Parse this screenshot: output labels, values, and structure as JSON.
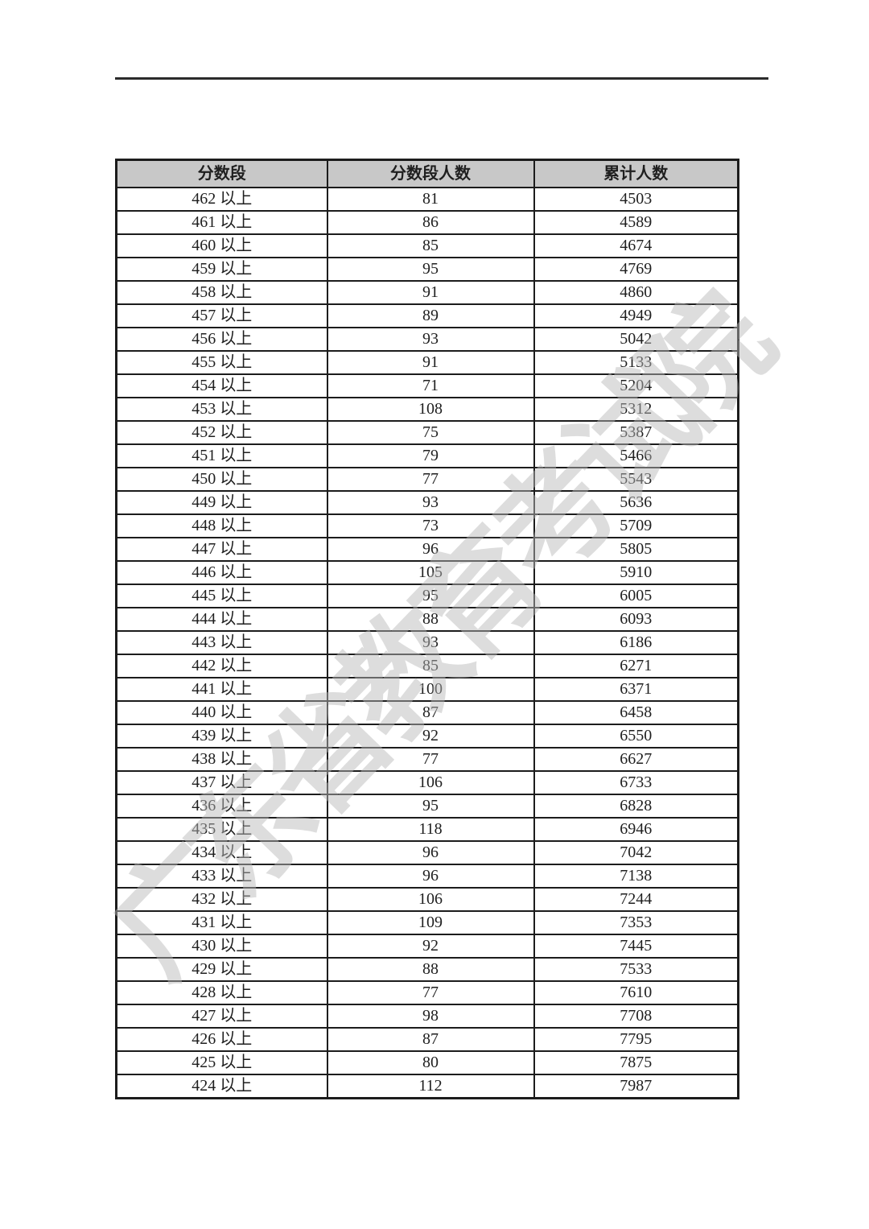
{
  "page": {
    "background": "#ffffff",
    "rule_color": "#2b2b2b"
  },
  "watermark": {
    "text": "广东省教育考试院",
    "color": "#b9b9b9"
  },
  "table": {
    "header_bg": "#c8c8c8",
    "border_color": "#1c1c1c",
    "text_color": "#1f1f1f",
    "columns": [
      "分数段",
      "分数段人数",
      "累计人数"
    ],
    "rows": [
      {
        "range": "462 以上",
        "count": "81",
        "cumulative": "4503"
      },
      {
        "range": "461 以上",
        "count": "86",
        "cumulative": "4589"
      },
      {
        "range": "460 以上",
        "count": "85",
        "cumulative": "4674"
      },
      {
        "range": "459 以上",
        "count": "95",
        "cumulative": "4769"
      },
      {
        "range": "458 以上",
        "count": "91",
        "cumulative": "4860"
      },
      {
        "range": "457 以上",
        "count": "89",
        "cumulative": "4949"
      },
      {
        "range": "456 以上",
        "count": "93",
        "cumulative": "5042"
      },
      {
        "range": "455 以上",
        "count": "91",
        "cumulative": "5133"
      },
      {
        "range": "454 以上",
        "count": "71",
        "cumulative": "5204"
      },
      {
        "range": "453 以上",
        "count": "108",
        "cumulative": "5312"
      },
      {
        "range": "452 以上",
        "count": "75",
        "cumulative": "5387"
      },
      {
        "range": "451 以上",
        "count": "79",
        "cumulative": "5466"
      },
      {
        "range": "450 以上",
        "count": "77",
        "cumulative": "5543"
      },
      {
        "range": "449 以上",
        "count": "93",
        "cumulative": "5636"
      },
      {
        "range": "448 以上",
        "count": "73",
        "cumulative": "5709"
      },
      {
        "range": "447 以上",
        "count": "96",
        "cumulative": "5805"
      },
      {
        "range": "446 以上",
        "count": "105",
        "cumulative": "5910"
      },
      {
        "range": "445 以上",
        "count": "95",
        "cumulative": "6005"
      },
      {
        "range": "444 以上",
        "count": "88",
        "cumulative": "6093"
      },
      {
        "range": "443 以上",
        "count": "93",
        "cumulative": "6186"
      },
      {
        "range": "442 以上",
        "count": "85",
        "cumulative": "6271"
      },
      {
        "range": "441 以上",
        "count": "100",
        "cumulative": "6371"
      },
      {
        "range": "440 以上",
        "count": "87",
        "cumulative": "6458"
      },
      {
        "range": "439 以上",
        "count": "92",
        "cumulative": "6550"
      },
      {
        "range": "438 以上",
        "count": "77",
        "cumulative": "6627"
      },
      {
        "range": "437 以上",
        "count": "106",
        "cumulative": "6733"
      },
      {
        "range": "436 以上",
        "count": "95",
        "cumulative": "6828"
      },
      {
        "range": "435 以上",
        "count": "118",
        "cumulative": "6946"
      },
      {
        "range": "434 以上",
        "count": "96",
        "cumulative": "7042"
      },
      {
        "range": "433 以上",
        "count": "96",
        "cumulative": "7138"
      },
      {
        "range": "432 以上",
        "count": "106",
        "cumulative": "7244"
      },
      {
        "range": "431 以上",
        "count": "109",
        "cumulative": "7353"
      },
      {
        "range": "430 以上",
        "count": "92",
        "cumulative": "7445"
      },
      {
        "range": "429 以上",
        "count": "88",
        "cumulative": "7533"
      },
      {
        "range": "428 以上",
        "count": "77",
        "cumulative": "7610"
      },
      {
        "range": "427 以上",
        "count": "98",
        "cumulative": "7708"
      },
      {
        "range": "426 以上",
        "count": "87",
        "cumulative": "7795"
      },
      {
        "range": "425 以上",
        "count": "80",
        "cumulative": "7875"
      },
      {
        "range": "424 以上",
        "count": "112",
        "cumulative": "7987"
      }
    ]
  }
}
